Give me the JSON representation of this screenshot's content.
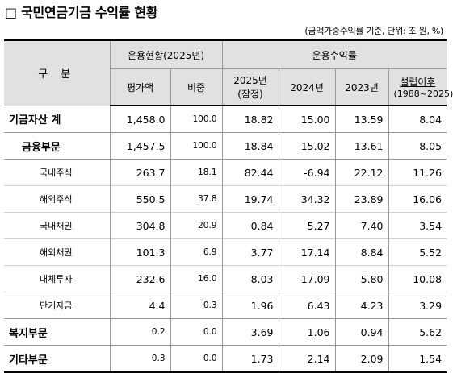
{
  "title": "□ 국민연금기금 수익률 현황",
  "note": "(금액가중수익률 기준, 단위: 조 원, %)",
  "header": {
    "gubun": "구 분",
    "group1": "운용현황(2025년)",
    "group2": "운용수익률",
    "cols": {
      "amount": "평가액",
      "share": "비중",
      "y2025": "2025년",
      "y2025_note": "(잠정)",
      "y2024": "2024년",
      "y2023": "2023년",
      "since": "설립이후",
      "since_range": "(1988~2025)"
    }
  },
  "rows": [
    {
      "label": "기금자산 계",
      "amount": "1,458.0",
      "share": "100.0",
      "y2025": "18.82",
      "y2024": "15.00",
      "y2023": "13.59",
      "since": "8.04"
    },
    {
      "label": "금융부문",
      "amount": "1,457.5",
      "share": "100.0",
      "y2025": "18.84",
      "y2024": "15.02",
      "y2023": "13.61",
      "since": "8.05"
    },
    {
      "label": "국내주식",
      "amount": "263.7",
      "share": "18.1",
      "y2025": "82.44",
      "y2024": "-6.94",
      "y2023": "22.12",
      "since": "11.26"
    },
    {
      "label": "해외주식",
      "amount": "550.5",
      "share": "37.8",
      "y2025": "19.74",
      "y2024": "34.32",
      "y2023": "23.89",
      "since": "16.06"
    },
    {
      "label": "국내채권",
      "amount": "304.8",
      "share": "20.9",
      "y2025": "0.84",
      "y2024": "5.27",
      "y2023": "7.40",
      "since": "3.54"
    },
    {
      "label": "해외채권",
      "amount": "101.3",
      "share": "6.9",
      "y2025": "3.77",
      "y2024": "17.14",
      "y2023": "8.84",
      "since": "5.52"
    },
    {
      "label": "대체투자",
      "amount": "232.6",
      "share": "16.0",
      "y2025": "8.03",
      "y2024": "17.09",
      "y2023": "5.80",
      "since": "10.08"
    },
    {
      "label": "단기자금",
      "amount": "4.4",
      "share": "0.3",
      "y2025": "1.96",
      "y2024": "6.43",
      "y2023": "4.23",
      "since": "3.29"
    },
    {
      "label": "복지부문",
      "amount": "0.2",
      "share": "0.0",
      "y2025": "3.69",
      "y2024": "1.06",
      "y2023": "0.94",
      "since": "5.62"
    },
    {
      "label": "기타부문",
      "amount": "0.3",
      "share": "0.0",
      "y2025": "1.73",
      "y2024": "2.14",
      "y2023": "2.09",
      "since": "1.54"
    }
  ]
}
